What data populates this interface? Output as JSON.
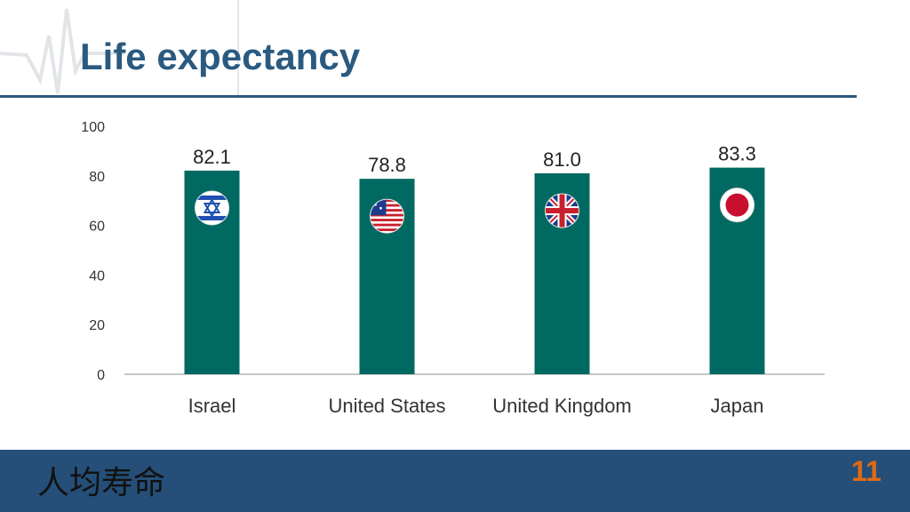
{
  "slide": {
    "title": "Life expectancy",
    "footer_text": "人均寿命",
    "page_number": "11"
  },
  "colors": {
    "title": "#2a5a80",
    "bar": "#006a62",
    "footer_bar": "#254f78",
    "page_number": "#e06a14"
  },
  "chart_data": {
    "type": "bar",
    "categories": [
      "Israel",
      "United States",
      "United Kingdom",
      "Japan"
    ],
    "values": [
      82.1,
      78.8,
      81.0,
      83.3
    ],
    "data_labels": [
      "82.1",
      "78.8",
      "81.0",
      "83.3"
    ],
    "y_ticks": [
      "0",
      "20",
      "40",
      "60",
      "80",
      "100"
    ],
    "ylim": [
      0,
      100
    ],
    "title": "",
    "xlabel": "",
    "ylabel": "",
    "grid": false,
    "legend": "none",
    "bar_icons": [
      "israel-flag-icon",
      "us-flag-icon",
      "uk-flag-icon",
      "japan-flag-icon"
    ]
  }
}
